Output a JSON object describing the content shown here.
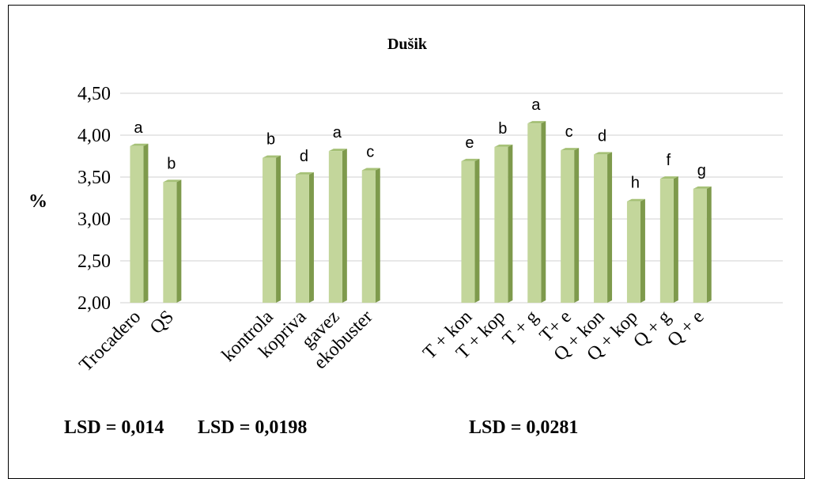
{
  "chart_data": {
    "type": "bar",
    "title": "Dušik",
    "ylabel": "%",
    "ylim": [
      2.0,
      4.5
    ],
    "yticks": [
      "2,00",
      "2,50",
      "3,00",
      "3,50",
      "4,00",
      "4,50"
    ],
    "grid": true,
    "bar_color": "#c3d69b",
    "groups": [
      {
        "categories": [
          "Trocadero",
          "QS"
        ],
        "values": [
          3.87,
          3.44
        ],
        "letters": [
          "a",
          "b"
        ],
        "lsd": "LSD = 0,014"
      },
      {
        "categories": [
          "kontrola",
          "kopriva",
          "gavez",
          "ekobuster"
        ],
        "values": [
          3.73,
          3.53,
          3.81,
          3.58
        ],
        "letters": [
          "b",
          "d",
          "a",
          "c"
        ],
        "lsd": "LSD = 0,0198"
      },
      {
        "categories": [
          "T + kon",
          "T + kop",
          "T + g",
          "T+ e",
          "Q + kon",
          "Q + kop",
          "Q + g",
          "Q + e"
        ],
        "values": [
          3.69,
          3.86,
          4.14,
          3.82,
          3.77,
          3.21,
          3.48,
          3.36
        ],
        "letters": [
          "e",
          "b",
          "a",
          "c",
          "d",
          "h",
          "f",
          "g"
        ],
        "lsd": "LSD = 0,0281"
      }
    ]
  }
}
